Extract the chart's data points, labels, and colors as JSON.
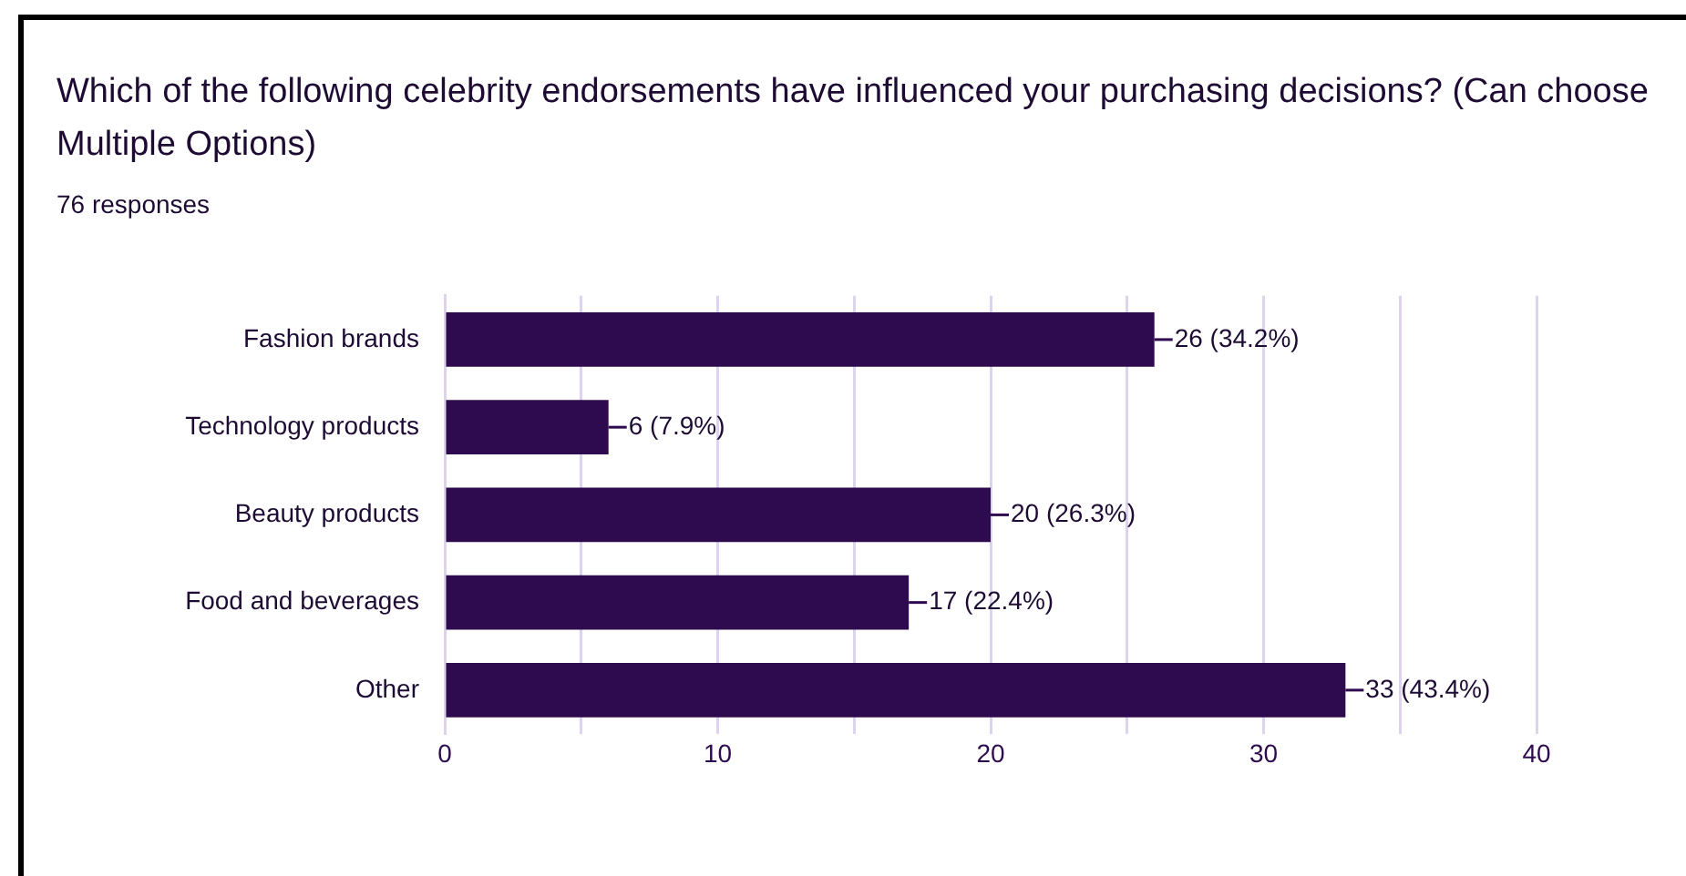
{
  "chart_data": {
    "type": "bar",
    "orientation": "horizontal",
    "title": "Which of the following celebrity endorsements have influenced your purchasing decisions?  (Can choose Multiple Options)",
    "subtitle": "76 responses",
    "categories": [
      "Fashion brands",
      "Technology products",
      "Beauty products",
      "Food and beverages",
      "Other"
    ],
    "values": [
      26,
      6,
      20,
      17,
      33
    ],
    "value_labels": [
      "26 (34.2%)",
      "6 (7.9%)",
      "20 (26.3%)",
      "17 (22.4%)",
      "33 (43.4%)"
    ],
    "color": "#2e0b4f",
    "xlim": [
      0,
      40
    ],
    "xticks": [
      0,
      {
        "value": 5,
        "label": null
      },
      10,
      {
        "value": 15,
        "label": null
      },
      20,
      {
        "value": 25,
        "label": null
      },
      30,
      {
        "value": 35,
        "label": null
      },
      40
    ],
    "grid": "x"
  }
}
